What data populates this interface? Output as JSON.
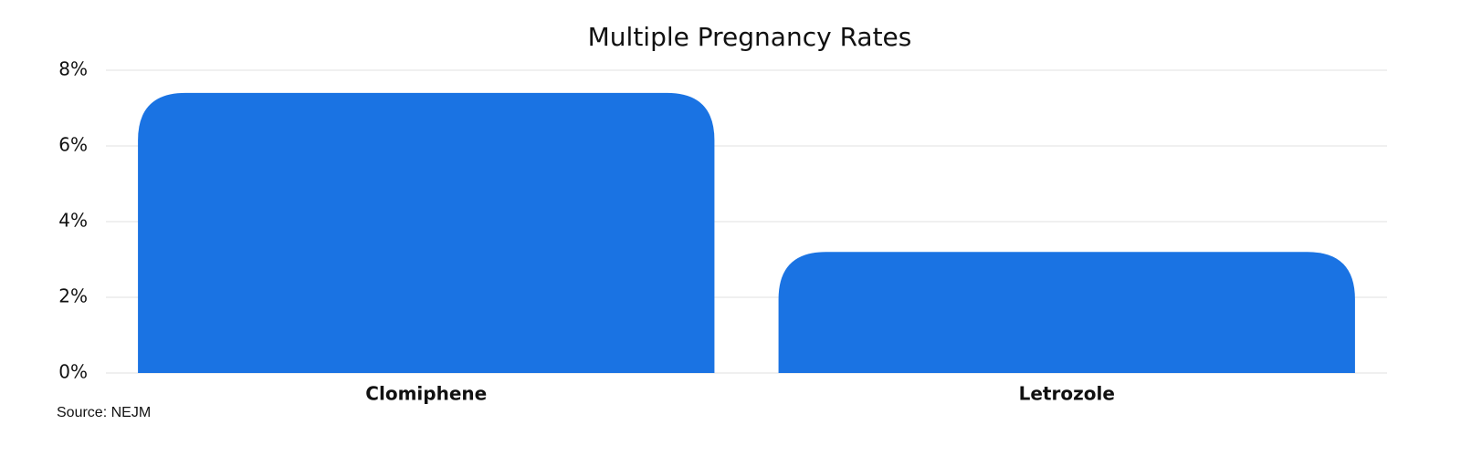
{
  "chart_data": {
    "type": "bar",
    "title": "Multiple Pregnancy Rates",
    "categories": [
      "Clomiphene",
      "Letrozole"
    ],
    "values": [
      7.4,
      3.2
    ],
    "color": "#1a73e3",
    "ylim": [
      0,
      8
    ],
    "yticks": [
      {
        "value": 0,
        "label": "0%"
      },
      {
        "value": 2,
        "label": "2%"
      },
      {
        "value": 4,
        "label": "4%"
      },
      {
        "value": 6,
        "label": "6%"
      },
      {
        "value": 8,
        "label": "8%"
      }
    ],
    "grid": true,
    "source": "Source: NEJM"
  }
}
